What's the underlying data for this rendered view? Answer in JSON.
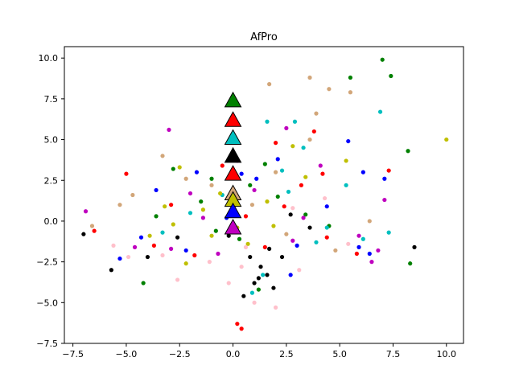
{
  "chart_data": {
    "type": "scatter",
    "title": "AfPro",
    "xlabel": "",
    "ylabel": "",
    "xlim": [
      -7.9,
      10.8
    ],
    "ylim": [
      -7.5,
      10.7
    ],
    "grid": false,
    "xticks": [
      -7.5,
      -5.0,
      -2.5,
      0.0,
      2.5,
      5.0,
      7.5,
      10.0
    ],
    "yticks": [
      -7.5,
      -5.0,
      -2.5,
      0.0,
      2.5,
      5.0,
      7.5,
      10.0
    ],
    "xtick_labels": [
      "−7.5",
      "−5.0",
      "−2.5",
      "0.0",
      "2.5",
      "5.0",
      "7.5",
      "10.0"
    ],
    "ytick_labels": [
      "−7.5",
      "−5.0",
      "−2.5",
      "0.0",
      "2.5",
      "5.0",
      "7.5",
      "10.0"
    ],
    "series": [
      {
        "color": "#008000",
        "marker": "circle",
        "points": [
          [
            7.0,
            9.9
          ],
          [
            7.4,
            8.9
          ],
          [
            5.5,
            8.8
          ],
          [
            8.2,
            4.3
          ],
          [
            8.3,
            -2.6
          ],
          [
            -4.2,
            -3.8
          ],
          [
            -2.8,
            3.2
          ],
          [
            -1.5,
            1.2
          ],
          [
            0.8,
            2.2
          ],
          [
            1.5,
            3.5
          ],
          [
            3.4,
            0.4
          ],
          [
            -0.8,
            -0.6
          ],
          [
            2.1,
            1.5
          ],
          [
            -3.6,
            0.3
          ],
          [
            4.5,
            -0.3
          ],
          [
            1.2,
            -4.2
          ],
          [
            -1.0,
            2.6
          ],
          [
            0.3,
            -1.1
          ]
        ]
      },
      {
        "color": "#ff0000",
        "marker": "circle",
        "points": [
          [
            0.4,
            -6.6
          ],
          [
            0.2,
            -6.3
          ],
          [
            -6.5,
            -0.6
          ],
          [
            -5.0,
            2.9
          ],
          [
            4.2,
            2.9
          ],
          [
            7.3,
            3.1
          ],
          [
            3.8,
            5.5
          ],
          [
            2.0,
            4.8
          ],
          [
            -2.9,
            1.0
          ],
          [
            -1.8,
            -2.1
          ],
          [
            0.6,
            0.3
          ],
          [
            1.5,
            -1.6
          ],
          [
            5.8,
            -2.0
          ],
          [
            3.2,
            2.2
          ],
          [
            -0.5,
            3.4
          ],
          [
            -3.7,
            -1.5
          ],
          [
            2.4,
            0.9
          ],
          [
            4.4,
            -1.0
          ]
        ]
      },
      {
        "color": "#00bfbf",
        "marker": "circle",
        "points": [
          [
            7.3,
            -0.7
          ],
          [
            6.9,
            6.7
          ],
          [
            2.9,
            6.1
          ],
          [
            1.6,
            6.1
          ],
          [
            3.3,
            4.5
          ],
          [
            5.3,
            2.2
          ],
          [
            4.4,
            -0.4
          ],
          [
            1.4,
            -3.3
          ],
          [
            -0.5,
            1.6
          ],
          [
            2.3,
            3.1
          ],
          [
            3.9,
            -1.3
          ],
          [
            0.9,
            -4.4
          ],
          [
            -2.0,
            0.5
          ],
          [
            6.1,
            -1.1
          ],
          [
            2.6,
            1.8
          ],
          [
            -3.3,
            -0.7
          ]
        ]
      },
      {
        "color": "#000000",
        "marker": "circle",
        "points": [
          [
            -7.0,
            -0.8
          ],
          [
            -5.7,
            -3.0
          ],
          [
            8.5,
            -1.6
          ],
          [
            1.0,
            -3.8
          ],
          [
            1.6,
            -3.3
          ],
          [
            0.8,
            -2.2
          ],
          [
            1.9,
            -4.1
          ],
          [
            1.3,
            -2.8
          ],
          [
            -0.2,
            -0.9
          ],
          [
            2.3,
            -2.2
          ],
          [
            0.5,
            -4.6
          ],
          [
            1.2,
            -3.5
          ],
          [
            -2.6,
            -1.0
          ],
          [
            0.1,
            1.2
          ],
          [
            2.7,
            0.4
          ],
          [
            -4.0,
            -2.2
          ],
          [
            1.7,
            -1.7
          ],
          [
            3.6,
            -0.4
          ]
        ]
      },
      {
        "color": "#d2a679",
        "marker": "circle",
        "points": [
          [
            3.6,
            8.8
          ],
          [
            4.5,
            8.1
          ],
          [
            5.5,
            7.9
          ],
          [
            1.7,
            8.4
          ],
          [
            3.9,
            6.6
          ],
          [
            3.6,
            5.0
          ],
          [
            -3.3,
            4.0
          ],
          [
            -1.0,
            2.2
          ],
          [
            2.0,
            3.0
          ],
          [
            -4.7,
            1.6
          ],
          [
            -6.6,
            -0.3
          ],
          [
            -5.3,
            1.0
          ],
          [
            6.4,
            0.0
          ],
          [
            4.8,
            -1.8
          ],
          [
            0.9,
            1.0
          ],
          [
            -2.2,
            2.6
          ],
          [
            2.5,
            -0.8
          ]
        ]
      },
      {
        "color": "#0000ff",
        "marker": "circle",
        "points": [
          [
            5.4,
            4.9
          ],
          [
            6.1,
            3.0
          ],
          [
            7.1,
            2.6
          ],
          [
            5.9,
            -1.6
          ],
          [
            6.4,
            -2.0
          ],
          [
            2.1,
            3.8
          ],
          [
            -3.6,
            1.9
          ],
          [
            -1.7,
            3.0
          ],
          [
            -0.3,
            0.2
          ],
          [
            -2.2,
            -1.8
          ],
          [
            1.1,
            2.6
          ],
          [
            4.4,
            0.9
          ],
          [
            -4.3,
            -1.0
          ],
          [
            3.0,
            -1.5
          ],
          [
            -5.3,
            -2.3
          ],
          [
            0.4,
            2.9
          ],
          [
            2.7,
            -3.3
          ]
        ]
      },
      {
        "color": "#bfbf00",
        "marker": "circle",
        "points": [
          [
            10.0,
            5.0
          ],
          [
            5.3,
            3.7
          ],
          [
            2.8,
            4.6
          ],
          [
            -1.4,
            0.7
          ],
          [
            -2.8,
            -0.2
          ],
          [
            -0.6,
            1.7
          ],
          [
            -3.2,
            0.9
          ],
          [
            0.2,
            -0.4
          ],
          [
            -2.2,
            -2.6
          ],
          [
            -1.0,
            -0.9
          ],
          [
            1.6,
            1.2
          ],
          [
            3.4,
            2.7
          ],
          [
            -2.5,
            3.3
          ],
          [
            0.7,
            -1.4
          ],
          [
            -3.9,
            -0.9
          ],
          [
            1.9,
            -0.3
          ]
        ]
      },
      {
        "color": "#bf00bf",
        "marker": "circle",
        "points": [
          [
            -3.0,
            5.6
          ],
          [
            -6.9,
            0.6
          ],
          [
            7.1,
            1.3
          ],
          [
            6.8,
            -1.8
          ],
          [
            4.1,
            3.4
          ],
          [
            2.5,
            5.7
          ],
          [
            -2.0,
            1.7
          ],
          [
            -0.7,
            -2.0
          ],
          [
            1.0,
            1.9
          ],
          [
            5.9,
            -0.9
          ],
          [
            -4.6,
            -1.6
          ],
          [
            3.3,
            0.2
          ],
          [
            0.2,
            3.7
          ],
          [
            -1.4,
            0.2
          ],
          [
            2.8,
            -1.2
          ],
          [
            -2.9,
            -1.7
          ],
          [
            6.5,
            -2.5
          ]
        ]
      },
      {
        "color": "#ffc0cb",
        "marker": "circle",
        "points": [
          [
            -4.9,
            -2.2
          ],
          [
            -2.6,
            -3.6
          ],
          [
            0.4,
            -2.8
          ],
          [
            1.0,
            -5.0
          ],
          [
            2.0,
            -5.3
          ],
          [
            3.1,
            -3.0
          ],
          [
            -0.2,
            -3.8
          ],
          [
            -5.6,
            -1.5
          ],
          [
            4.3,
            1.4
          ],
          [
            -1.1,
            -2.5
          ],
          [
            0.6,
            -1.6
          ],
          [
            2.8,
            0.8
          ],
          [
            5.4,
            -1.4
          ],
          [
            -3.3,
            -2.1
          ]
        ]
      }
    ],
    "triangles": [
      {
        "color": "#008000",
        "x": 0.0,
        "y": 7.4
      },
      {
        "color": "#ff0000",
        "x": 0.0,
        "y": 6.2
      },
      {
        "color": "#00bfbf",
        "x": 0.0,
        "y": 5.1
      },
      {
        "color": "#000000",
        "x": 0.0,
        "y": 4.0
      },
      {
        "color": "#ff0000",
        "x": 0.0,
        "y": 2.9
      },
      {
        "color": "#d2a679",
        "x": 0.0,
        "y": 1.7
      },
      {
        "color": "#bfbf00",
        "x": 0.0,
        "y": 1.3
      },
      {
        "color": "#0000ff",
        "x": 0.0,
        "y": 0.6
      },
      {
        "color": "#bf00bf",
        "x": 0.0,
        "y": -0.4
      }
    ]
  }
}
